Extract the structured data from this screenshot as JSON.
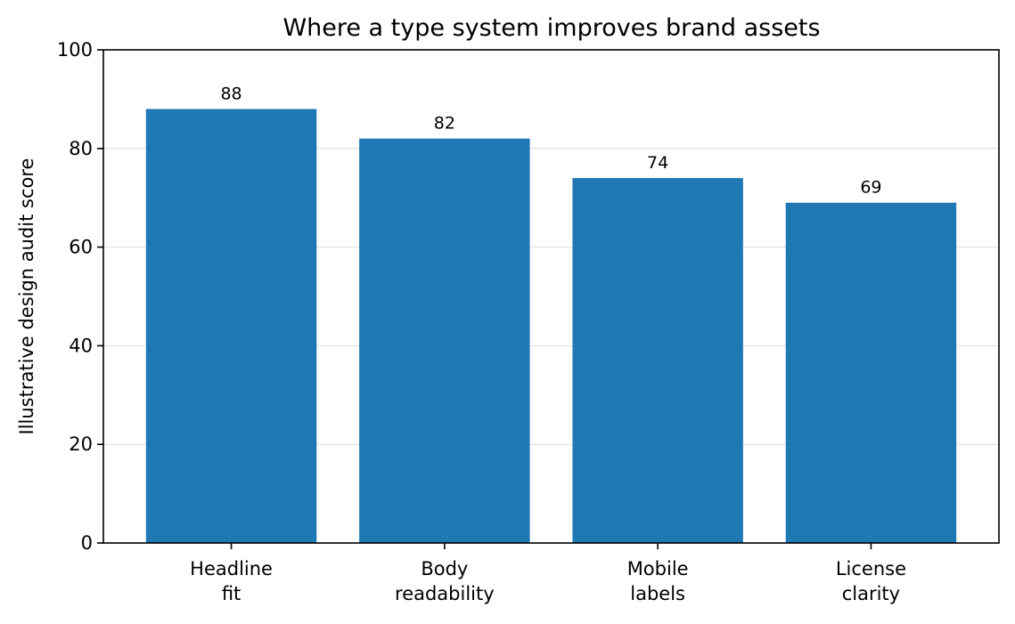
{
  "chart_data": {
    "type": "bar",
    "title": "Where a type system improves brand assets",
    "xlabel": "",
    "ylabel": "Illustrative design audit score",
    "categories": [
      [
        "Headline",
        "fit"
      ],
      [
        "Body",
        "readability"
      ],
      [
        "Mobile",
        "labels"
      ],
      [
        "License",
        "clarity"
      ]
    ],
    "values": [
      88,
      82,
      74,
      69
    ],
    "data_labels": [
      "88",
      "82",
      "74",
      "69"
    ],
    "ylim": [
      0,
      100
    ],
    "yticks": [
      0,
      20,
      40,
      60,
      80,
      100
    ],
    "ytick_labels": [
      "0",
      "20",
      "40",
      "60",
      "80",
      "100"
    ],
    "grid": "y-axis",
    "legend": "none",
    "colors": {
      "bar": "#1f77b4"
    }
  }
}
